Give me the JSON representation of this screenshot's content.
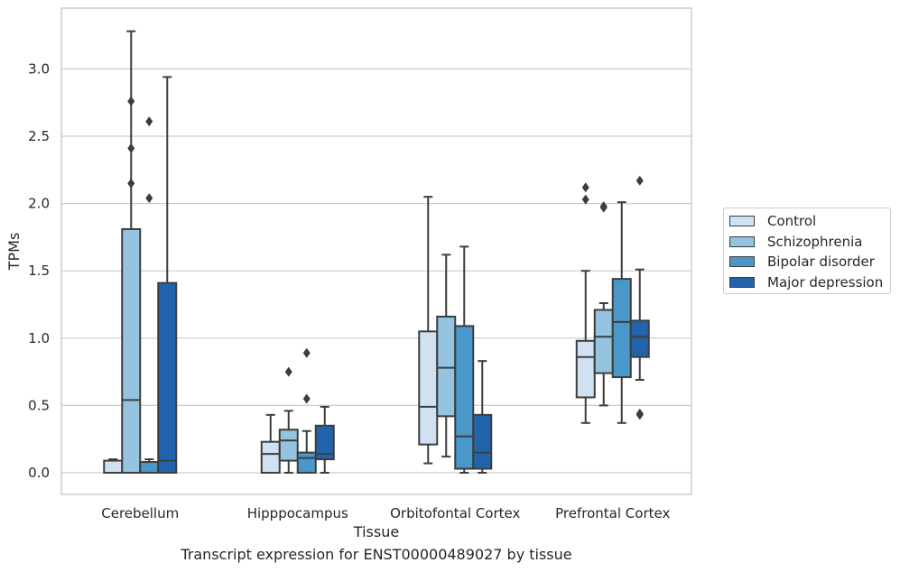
{
  "chart_data": {
    "type": "box",
    "xlabel": "Tissue",
    "ylabel": "TPMs",
    "ylim": [
      -0.16,
      3.45
    ],
    "yticks": [
      0.0,
      0.5,
      1.0,
      1.5,
      2.0,
      2.5,
      3.0
    ],
    "ytick_labels": [
      "0.0",
      "0.5",
      "1.0",
      "1.5",
      "2.0",
      "2.5",
      "3.0"
    ],
    "grid": "horizontal",
    "legend_position": "outside right",
    "categories": [
      "Cerebellum",
      "Hipppocampus",
      "Orbitofontal Cortex",
      "Prefrontal Cortex"
    ],
    "series": [
      {
        "name": "Control",
        "color": "#d0e1f2",
        "boxes": [
          {
            "whislo": 0.0,
            "q1": 0.0,
            "med": 0.0,
            "q3": 0.09,
            "whishi": 0.1,
            "fliers": []
          },
          {
            "whislo": 0.0,
            "q1": 0.0,
            "med": 0.14,
            "q3": 0.23,
            "whishi": 0.43,
            "fliers": []
          },
          {
            "whislo": 0.07,
            "q1": 0.21,
            "med": 0.49,
            "q3": 1.05,
            "whishi": 2.05,
            "fliers": []
          },
          {
            "whislo": 0.37,
            "q1": 0.56,
            "med": 0.86,
            "q3": 0.98,
            "whishi": 1.5,
            "fliers": [
              2.03,
              2.12
            ]
          }
        ]
      },
      {
        "name": "Schizophrenia",
        "color": "#94c4df",
        "boxes": [
          {
            "whislo": 0.0,
            "q1": 0.0,
            "med": 0.54,
            "q3": 1.81,
            "whishi": 3.28,
            "fliers": [
              2.15,
              2.41,
              2.76
            ]
          },
          {
            "whislo": 0.0,
            "q1": 0.09,
            "med": 0.24,
            "q3": 0.32,
            "whishi": 0.46,
            "fliers": [
              0.75
            ]
          },
          {
            "whislo": 0.12,
            "q1": 0.42,
            "med": 0.78,
            "q3": 1.16,
            "whishi": 1.62,
            "fliers": []
          },
          {
            "whislo": 0.5,
            "q1": 0.74,
            "med": 1.01,
            "q3": 1.21,
            "whishi": 1.26,
            "fliers": [
              1.97,
              1.98
            ]
          }
        ]
      },
      {
        "name": "Bipolar disorder",
        "color": "#4a98c9",
        "boxes": [
          {
            "whislo": 0.0,
            "q1": 0.0,
            "med": 0.0,
            "q3": 0.08,
            "whishi": 0.1,
            "fliers": [
              2.04,
              2.61
            ]
          },
          {
            "whislo": 0.0,
            "q1": 0.0,
            "med": 0.11,
            "q3": 0.15,
            "whishi": 0.31,
            "fliers": [
              0.55,
              0.89
            ]
          },
          {
            "whislo": 0.0,
            "q1": 0.03,
            "med": 0.27,
            "q3": 1.09,
            "whishi": 1.68,
            "fliers": []
          },
          {
            "whislo": 0.37,
            "q1": 0.71,
            "med": 1.12,
            "q3": 1.44,
            "whishi": 2.01,
            "fliers": []
          }
        ]
      },
      {
        "name": "Major depression",
        "color": "#2164ab",
        "boxes": [
          {
            "whislo": 0.0,
            "q1": 0.0,
            "med": 0.09,
            "q3": 1.41,
            "whishi": 2.94,
            "fliers": []
          },
          {
            "whislo": 0.0,
            "q1": 0.1,
            "med": 0.14,
            "q3": 0.35,
            "whishi": 0.49,
            "fliers": []
          },
          {
            "whislo": 0.0,
            "q1": 0.03,
            "med": 0.15,
            "q3": 0.43,
            "whishi": 0.83,
            "fliers": []
          },
          {
            "whislo": 0.69,
            "q1": 0.86,
            "med": 1.01,
            "q3": 1.13,
            "whishi": 1.51,
            "fliers": [
              0.43,
              0.44,
              2.17
            ]
          }
        ]
      }
    ]
  },
  "caption": "Transcript expression for ENST00000489027 by tissue"
}
